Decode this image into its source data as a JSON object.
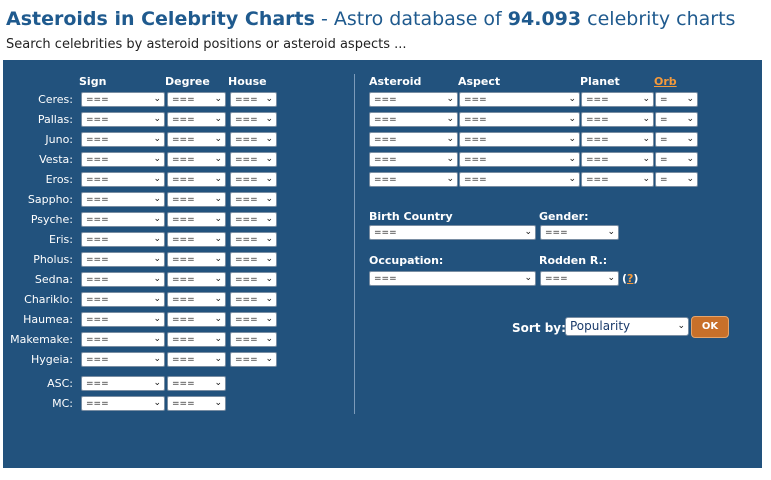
{
  "header": {
    "title_main": "Asteroids in Celebrity Charts",
    "title_sep": " - Astro database of ",
    "count": "94.093",
    "title_tail": " celebrity charts",
    "subtitle": "Search celebrities by asteroid positions or asteroid aspects ..."
  },
  "left_table": {
    "headers": {
      "sign": "Sign",
      "degree": "Degree",
      "house": "House"
    },
    "placeholder": "===",
    "rows": [
      "Ceres:",
      "Pallas:",
      "Juno:",
      "Vesta:",
      "Eros:",
      "Sappho:",
      "Psyche:",
      "Eris:",
      "Pholus:",
      "Sedna:",
      "Chariklo:",
      "Haumea:",
      "Makemake:",
      "Hygeia:"
    ],
    "extra_rows": [
      "ASC:",
      "MC:"
    ]
  },
  "right_table": {
    "headers": {
      "asteroid": "Asteroid",
      "aspect": "Aspect",
      "planet": "Planet",
      "orb": "Orb"
    },
    "placeholder": "===",
    "orb_placeholder": "=",
    "row_count": 5
  },
  "filters": {
    "birth_country_label": "Birth Country",
    "gender_label": "Gender:",
    "occupation_label": "Occupation:",
    "rodden_label": "Rodden R.:",
    "placeholder": "===",
    "help_open": "(",
    "help_q": "?",
    "help_close": ")"
  },
  "sort": {
    "label": "Sort by:",
    "value": "Popularity",
    "ok": "OK"
  },
  "icons": {
    "dropdown": "chevron-down-icon"
  },
  "colors": {
    "panel": "#22527d",
    "title": "#1f5a8e",
    "accent": "#f59a3b",
    "button": "#c8702a"
  }
}
